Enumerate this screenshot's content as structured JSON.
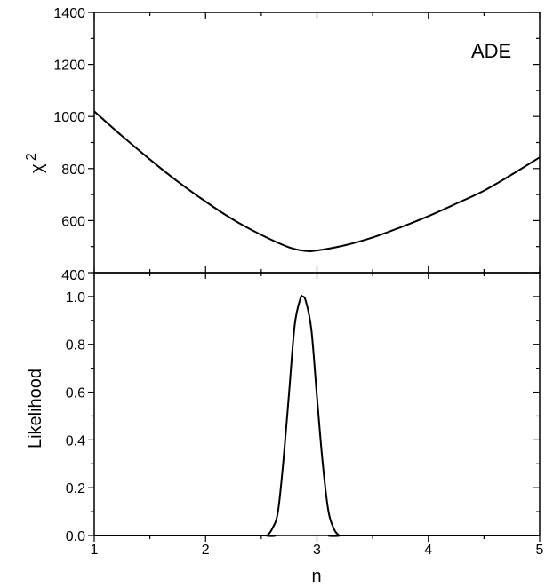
{
  "chart_data": [
    {
      "type": "line",
      "panel": "top",
      "ylabel": "χ",
      "ylabel_superscript": "2",
      "annotation": "ADE",
      "xlim": [
        1,
        5
      ],
      "ylim": [
        400,
        1400
      ],
      "ytick_values": [
        400,
        600,
        800,
        1000,
        1200,
        1400
      ],
      "yticks": [
        "400",
        "600",
        "800",
        "1000",
        "1200",
        "1400"
      ],
      "minor_ytick_step": 100,
      "series": [
        {
          "x": [
            1.0,
            1.25,
            1.5,
            1.75,
            2.0,
            2.25,
            2.5,
            2.75,
            2.9,
            3.0,
            3.25,
            3.5,
            3.75,
            4.0,
            4.25,
            4.5,
            4.75,
            5.0
          ],
          "y": [
            1020,
            925,
            835,
            750,
            673,
            603,
            545,
            497,
            483,
            485,
            505,
            535,
            574,
            617,
            665,
            715,
            777,
            843
          ]
        }
      ],
      "color": "#000000"
    },
    {
      "type": "line",
      "panel": "bottom",
      "xlabel": "n",
      "ylabel": "Likelihood",
      "xlim": [
        1,
        5
      ],
      "ylim": [
        0,
        1.1
      ],
      "xtick_values": [
        1,
        2,
        3,
        4,
        5
      ],
      "xticks": [
        "1",
        "2",
        "3",
        "4",
        "5"
      ],
      "ytick_values": [
        0,
        0.2,
        0.4,
        0.6,
        0.8,
        1.0
      ],
      "yticks": [
        "0.0",
        "0.2",
        "0.4",
        "0.6",
        "0.8",
        "1.0"
      ],
      "minor_xtick_step": 0.5,
      "minor_ytick_step": 0.1,
      "series": [
        {
          "x": [
            2.5,
            2.55,
            2.6,
            2.65,
            2.7,
            2.75,
            2.8,
            2.85,
            2.87,
            2.9,
            2.95,
            3.0,
            3.05,
            3.1,
            3.15,
            3.2,
            3.25
          ],
          "y": [
            0.0,
            0.0,
            0.03,
            0.1,
            0.32,
            0.6,
            0.88,
            0.99,
            1.0,
            0.98,
            0.86,
            0.58,
            0.31,
            0.11,
            0.03,
            0.0,
            0.0
          ]
        }
      ],
      "color": "#000000"
    }
  ]
}
